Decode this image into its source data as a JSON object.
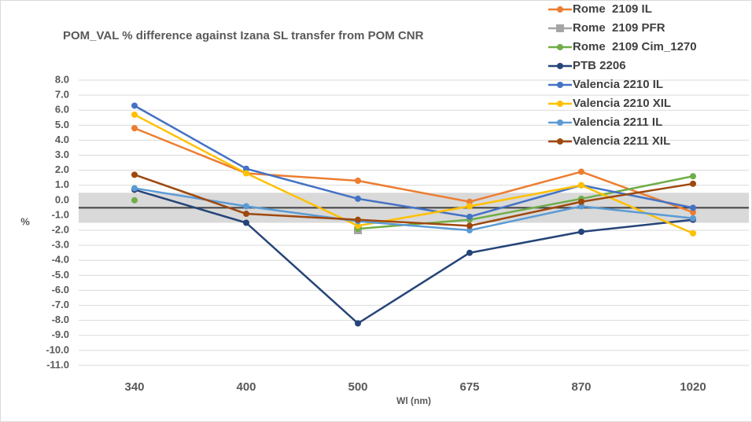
{
  "chart_data": {
    "type": "line",
    "title": "POM_VAL % difference against Izana SL transfer from POM CNR",
    "x_label": "Wl (nm)",
    "y_label": "%",
    "categories": [
      "340",
      "400",
      "500",
      "675",
      "870",
      "1020"
    ],
    "series": [
      {
        "name": "Rome  2109 IL",
        "color": "#ed7d31",
        "marker": "circle",
        "values": [
          4.8,
          1.8,
          1.3,
          -0.1,
          1.9,
          -0.8
        ]
      },
      {
        "name": "Rome  2109 PFR",
        "color": "#a5a5a5",
        "marker": "square",
        "values": [
          null,
          null,
          -2.0,
          null,
          null,
          null
        ]
      },
      {
        "name": "Rome  2109 Cim_1270",
        "color": "#70ad47",
        "marker": "circle",
        "values": [
          0.0,
          null,
          -1.9,
          -1.3,
          0.1,
          1.6
        ]
      },
      {
        "name": "PTB 2206",
        "color": "#264478",
        "marker": "circle",
        "values": [
          0.7,
          -1.5,
          -8.2,
          -3.5,
          -2.1,
          -1.3
        ]
      },
      {
        "name": "Valencia 2210 IL",
        "color": "#4472c4",
        "marker": "circle",
        "values": [
          6.3,
          2.1,
          0.1,
          -1.1,
          1.0,
          -0.5
        ]
      },
      {
        "name": "Valencia 2210 XIL",
        "color": "#ffc000",
        "marker": "circle",
        "values": [
          5.7,
          1.8,
          -1.7,
          -0.4,
          1.0,
          -2.2
        ]
      },
      {
        "name": "Valencia 2211 IL",
        "color": "#5b9bd5",
        "marker": "circle",
        "values": [
          0.8,
          -0.4,
          -1.4,
          -2.0,
          -0.4,
          -1.2
        ]
      },
      {
        "name": "Valencia 2211 XIL",
        "color": "#9e480e",
        "marker": "circle",
        "values": [
          1.7,
          -0.9,
          -1.3,
          -1.7,
          -0.1,
          1.1
        ]
      }
    ],
    "ylim": [
      -11,
      8
    ],
    "yticks": [
      {
        "value": 8,
        "label": "8.0"
      },
      {
        "value": 7,
        "label": "7.0"
      },
      {
        "value": 6,
        "label": "6.0"
      },
      {
        "value": 5,
        "label": "5.0"
      },
      {
        "value": 4,
        "label": "4.0"
      },
      {
        "value": 3,
        "label": "3.0"
      },
      {
        "value": 2,
        "label": "2.0"
      },
      {
        "value": 1,
        "label": "1.0"
      },
      {
        "value": 0,
        "label": "0.0"
      },
      {
        "value": -1,
        "label": "-1.0"
      },
      {
        "value": -2,
        "label": "-2.0"
      },
      {
        "value": -3,
        "label": "-3.0"
      },
      {
        "value": -4,
        "label": "-4.0"
      },
      {
        "value": -5,
        "label": "-5.0"
      },
      {
        "value": -6,
        "label": "-6.0"
      },
      {
        "value": -7,
        "label": "-7.0"
      },
      {
        "value": -8,
        "label": "-8.0"
      },
      {
        "value": -9,
        "label": "-9.0"
      },
      {
        "value": -10,
        "label": "-10.0"
      },
      {
        "value": -11,
        "label": "-11.0"
      }
    ],
    "grid": true,
    "band": [
      -1.5,
      0.5
    ],
    "band_color": "#d9d9d9",
    "reference_line": -0.5,
    "reference_color": "#404040",
    "legend": "top-right"
  }
}
